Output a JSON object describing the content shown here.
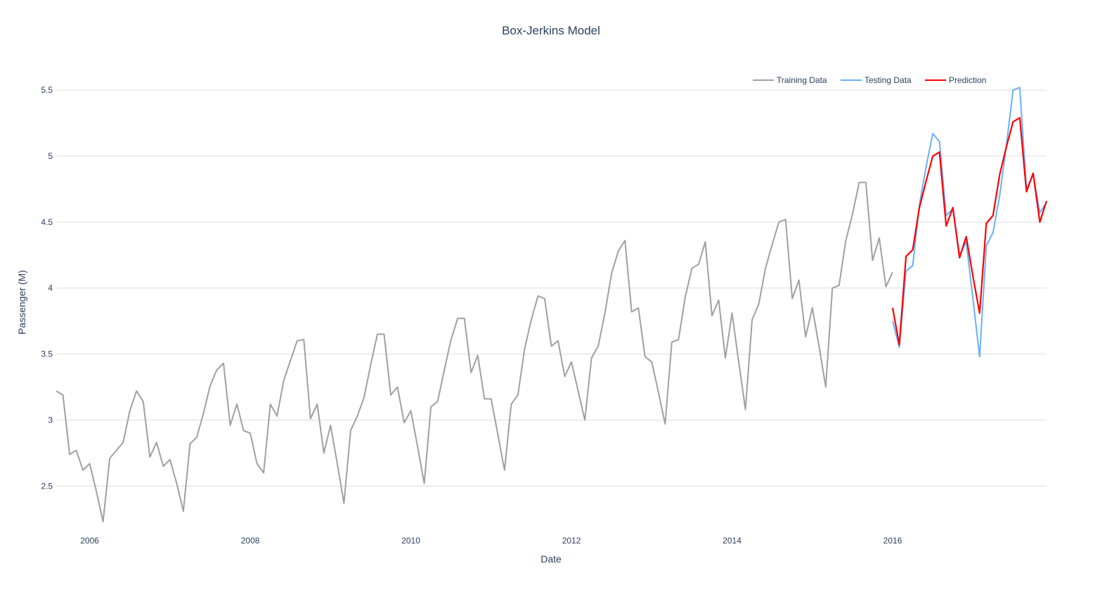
{
  "chart_data": {
    "type": "line",
    "title": "Box-Jerkins Model",
    "xlabel": "Date",
    "ylabel": "Passenger (M)",
    "xlim": [
      "2005-08-01",
      "2017-12-01"
    ],
    "ylim": [
      2.15,
      5.65
    ],
    "x_ticks": [
      "2006",
      "2008",
      "2010",
      "2012",
      "2014",
      "2016"
    ],
    "y_ticks": [
      "2.5",
      "3",
      "3.5",
      "4",
      "4.5",
      "5",
      "5.5"
    ],
    "grid": "horizontal",
    "legend_position": "top-right",
    "colors": {
      "training": "#a0a0a0",
      "testing": "#66b0ff",
      "prediction": "#ff0000",
      "grid": "#dcdcdc",
      "text": "#2a3f5f"
    },
    "series": [
      {
        "name": "Training Data",
        "start": "2005-08",
        "values": [
          3.22,
          3.19,
          2.74,
          2.77,
          2.62,
          2.67,
          2.46,
          2.23,
          2.71,
          2.77,
          2.83,
          3.07,
          3.22,
          3.14,
          2.72,
          2.83,
          2.65,
          2.7,
          2.52,
          2.31,
          2.82,
          2.87,
          3.05,
          3.26,
          3.38,
          3.43,
          2.96,
          3.12,
          2.92,
          2.9,
          2.67,
          2.6,
          3.12,
          3.03,
          3.3,
          3.45,
          3.6,
          3.61,
          3.01,
          3.12,
          2.75,
          2.96,
          2.67,
          2.37,
          2.92,
          3.03,
          3.17,
          3.42,
          3.65,
          3.65,
          3.19,
          3.25,
          2.98,
          3.07,
          2.8,
          2.52,
          3.1,
          3.14,
          3.38,
          3.61,
          3.77,
          3.77,
          3.36,
          3.49,
          3.16,
          3.16,
          2.89,
          2.62,
          3.12,
          3.19,
          3.54,
          3.76,
          3.94,
          3.92,
          3.56,
          3.6,
          3.33,
          3.44,
          3.22,
          3.0,
          3.47,
          3.56,
          3.81,
          4.11,
          4.28,
          4.36,
          3.82,
          3.85,
          3.48,
          3.44,
          3.21,
          2.97,
          3.59,
          3.61,
          3.93,
          4.15,
          4.18,
          4.35,
          3.79,
          3.91,
          3.47,
          3.81,
          3.44,
          3.08,
          3.76,
          3.88,
          4.15,
          4.33,
          4.5,
          4.52,
          3.92,
          4.06,
          3.63,
          3.85,
          3.56,
          3.25,
          4.0,
          4.02,
          4.36,
          4.56,
          4.8,
          4.8,
          4.21,
          4.38,
          4.01,
          4.12
        ]
      },
      {
        "name": "Testing Data",
        "start": "2016-01",
        "values": [
          3.75,
          3.55,
          4.13,
          4.17,
          4.63,
          4.92,
          5.17,
          5.11,
          4.55,
          4.6,
          4.25,
          4.35,
          3.92,
          3.48,
          4.32,
          4.42,
          4.7,
          5.08,
          5.5,
          5.52,
          4.75,
          4.86,
          4.57,
          4.65
        ]
      },
      {
        "name": "Prediction",
        "start": "2016-01",
        "values": [
          3.85,
          3.57,
          4.24,
          4.29,
          4.61,
          4.81,
          5.0,
          5.03,
          4.47,
          4.61,
          4.23,
          4.39,
          4.09,
          3.81,
          4.49,
          4.55,
          4.86,
          5.07,
          5.26,
          5.29,
          4.73,
          4.87,
          4.5,
          4.66
        ]
      }
    ]
  }
}
